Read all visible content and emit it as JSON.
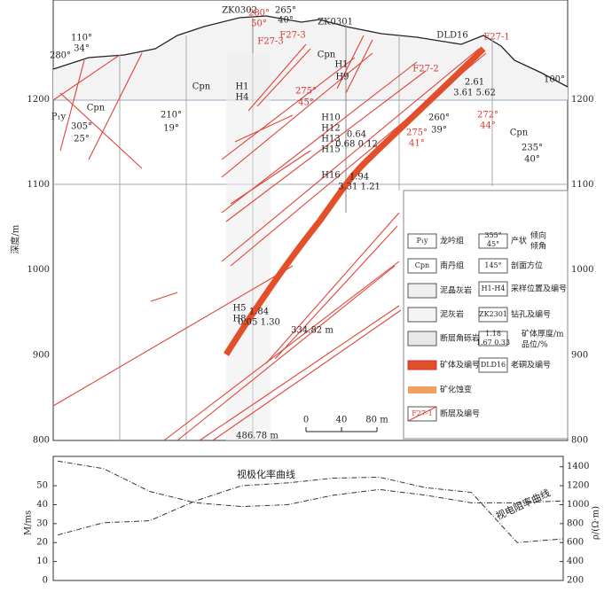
{
  "section": {
    "depth_label": "深度/m",
    "ylim": [
      800,
      1317
    ],
    "yticks_left": [
      1200,
      1100,
      1000,
      900,
      800
    ],
    "yticks_right": [
      1200,
      1100,
      1000,
      900,
      800
    ],
    "labels": [
      "ZK0302",
      "ZK0301",
      "DLD16",
      "F27-1",
      "F27-2",
      "F27-3",
      "F27-3",
      "280°",
      "50°",
      "110°",
      "34°",
      "280°",
      "265°",
      "40°",
      "210°",
      "19°",
      "305°",
      "25°",
      "260°",
      "39°",
      "235°",
      "40°",
      "100°",
      "275°",
      "45°",
      "275°",
      "41°",
      "272°",
      "44°",
      "Cpn",
      "Cpn",
      "Cpn",
      "Cpn",
      "P₁y",
      "H1",
      "H9",
      "H1",
      "H4",
      "H10",
      "H12",
      "H13",
      "H15",
      "H16",
      "H5",
      "H8",
      "0.64",
      "0.68 0.12",
      "1.94",
      "3.31 1.21",
      "2.61",
      "3.61 5.62",
      "1.84",
      "0.05 1.30",
      "486.78 m",
      "334.82 m"
    ],
    "scale": [
      "0",
      "40",
      "80 m"
    ],
    "legend": {
      "symbols": [
        "P₁y",
        "Cpn",
        "355°",
        "45°",
        "145°",
        "H1-H4",
        "ZK2301",
        "1.18",
        "1.67 0.33",
        "DLD16",
        "F27-1"
      ],
      "items": [
        "龙吟组",
        "南丹组",
        "泥晶灰岩",
        "泥灰岩",
        "断层角砾岩",
        "矿体及编号",
        "矿化蚀变",
        "断层及编号",
        "产状",
        "倾向",
        "倾角",
        "剖面方位",
        "采样位置及编号",
        "钻孔及编号",
        "矿体厚度/m",
        "品位/%",
        "老硐及编号"
      ]
    }
  },
  "profile": {
    "ylabel": "M/ms",
    "y2label": "ρ/(Ω·m)",
    "ylim": [
      0,
      65
    ],
    "yticks": [
      0,
      10,
      20,
      30,
      40,
      50
    ],
    "y2lim": [
      200,
      1500
    ],
    "y2ticks": [
      200,
      400,
      600,
      800,
      1000,
      1200,
      1400
    ],
    "series": [
      {
        "name": "视极化率曲线",
        "values": [
          63,
          59,
          47,
          41,
          39,
          40,
          45,
          48,
          45,
          41,
          41,
          42
        ]
      },
      {
        "name": "视电阻率曲线",
        "axis": "y2",
        "values": [
          680,
          810,
          830,
          1040,
          1200,
          1230,
          1280,
          1290,
          1180,
          1130,
          600,
          640
        ]
      }
    ]
  }
}
